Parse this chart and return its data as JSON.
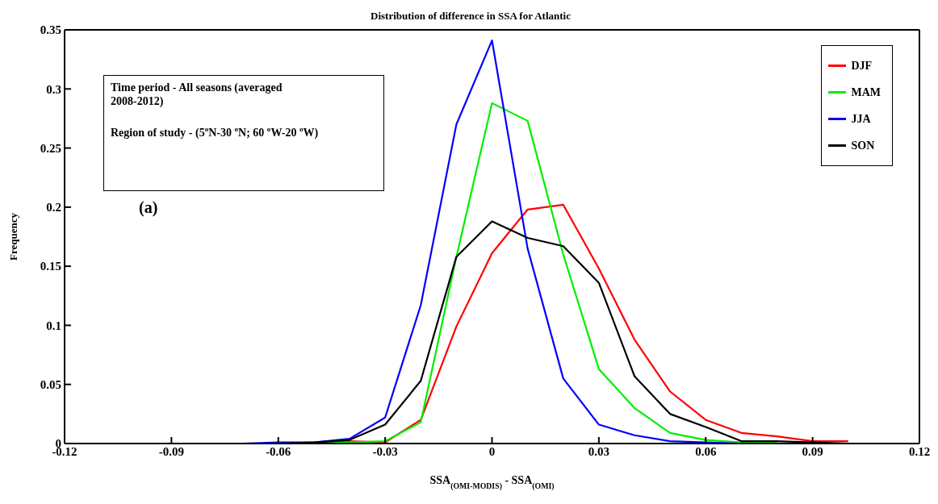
{
  "chart_data": {
    "type": "line",
    "title": "Distribution of difference in SSA for Atlantic",
    "xlabel": "SSA$_{(OMI-MODIS)}$ - SSA$_{(OMI)}$",
    "ylabel": "Frequency",
    "annotations": [
      "Time period - All seasons (averaged 2008-2012)",
      "Region of study - (5$^{o}$N-30 $^{o}$N; 60 $^{o}$W-20 $^{o}$W)",
      "(a)"
    ],
    "x": [
      -0.07,
      -0.06,
      -0.05,
      -0.04,
      -0.03,
      -0.02,
      -0.01,
      0,
      0.01,
      0.02,
      0.03,
      0.04,
      0.05,
      0.06,
      0.07,
      0.08,
      0.09,
      0.1
    ],
    "series": [
      {
        "name": "DJF",
        "color": "#ff0000",
        "values": [
          null,
          null,
          0,
          0.002,
          0.001,
          0.02,
          0.099,
          0.161,
          0.198,
          0.202,
          0.148,
          0.088,
          0.044,
          0.02,
          0.009,
          0.006,
          0.002,
          0.002
        ]
      },
      {
        "name": "MAM",
        "color": "#00ee00",
        "values": [
          null,
          null,
          0,
          0.001,
          0.002,
          0.018,
          0.158,
          0.288,
          0.273,
          0.16,
          0.063,
          0.03,
          0.009,
          0.003,
          0.001,
          0.001,
          null,
          null
        ]
      },
      {
        "name": "JJA",
        "color": "#0000ff",
        "values": [
          0,
          0.001,
          0.001,
          0.004,
          0.022,
          0.117,
          0.27,
          0.341,
          0.165,
          0.055,
          0.016,
          0.007,
          0.002,
          0.001,
          0,
          0,
          null,
          null
        ]
      },
      {
        "name": "SON",
        "color": "#000000",
        "values": [
          0,
          0,
          0.001,
          0.003,
          0.016,
          0.053,
          0.158,
          0.188,
          0.174,
          0.167,
          0.136,
          0.057,
          0.025,
          0.014,
          0.002,
          0.002,
          0.001,
          0
        ]
      }
    ],
    "xlim": [
      -0.12,
      0.12
    ],
    "xticks": [
      -0.12,
      -0.09,
      -0.06,
      -0.03,
      0,
      0.03,
      0.06,
      0.09,
      0.12
    ],
    "ylim": [
      0,
      0.35
    ],
    "yticks": [
      0,
      0.05,
      0.1,
      0.15,
      0.2,
      0.25,
      0.3,
      0.35
    ],
    "legend": "top right",
    "grid": false,
    "marker": "none",
    "line_style": "solid"
  }
}
